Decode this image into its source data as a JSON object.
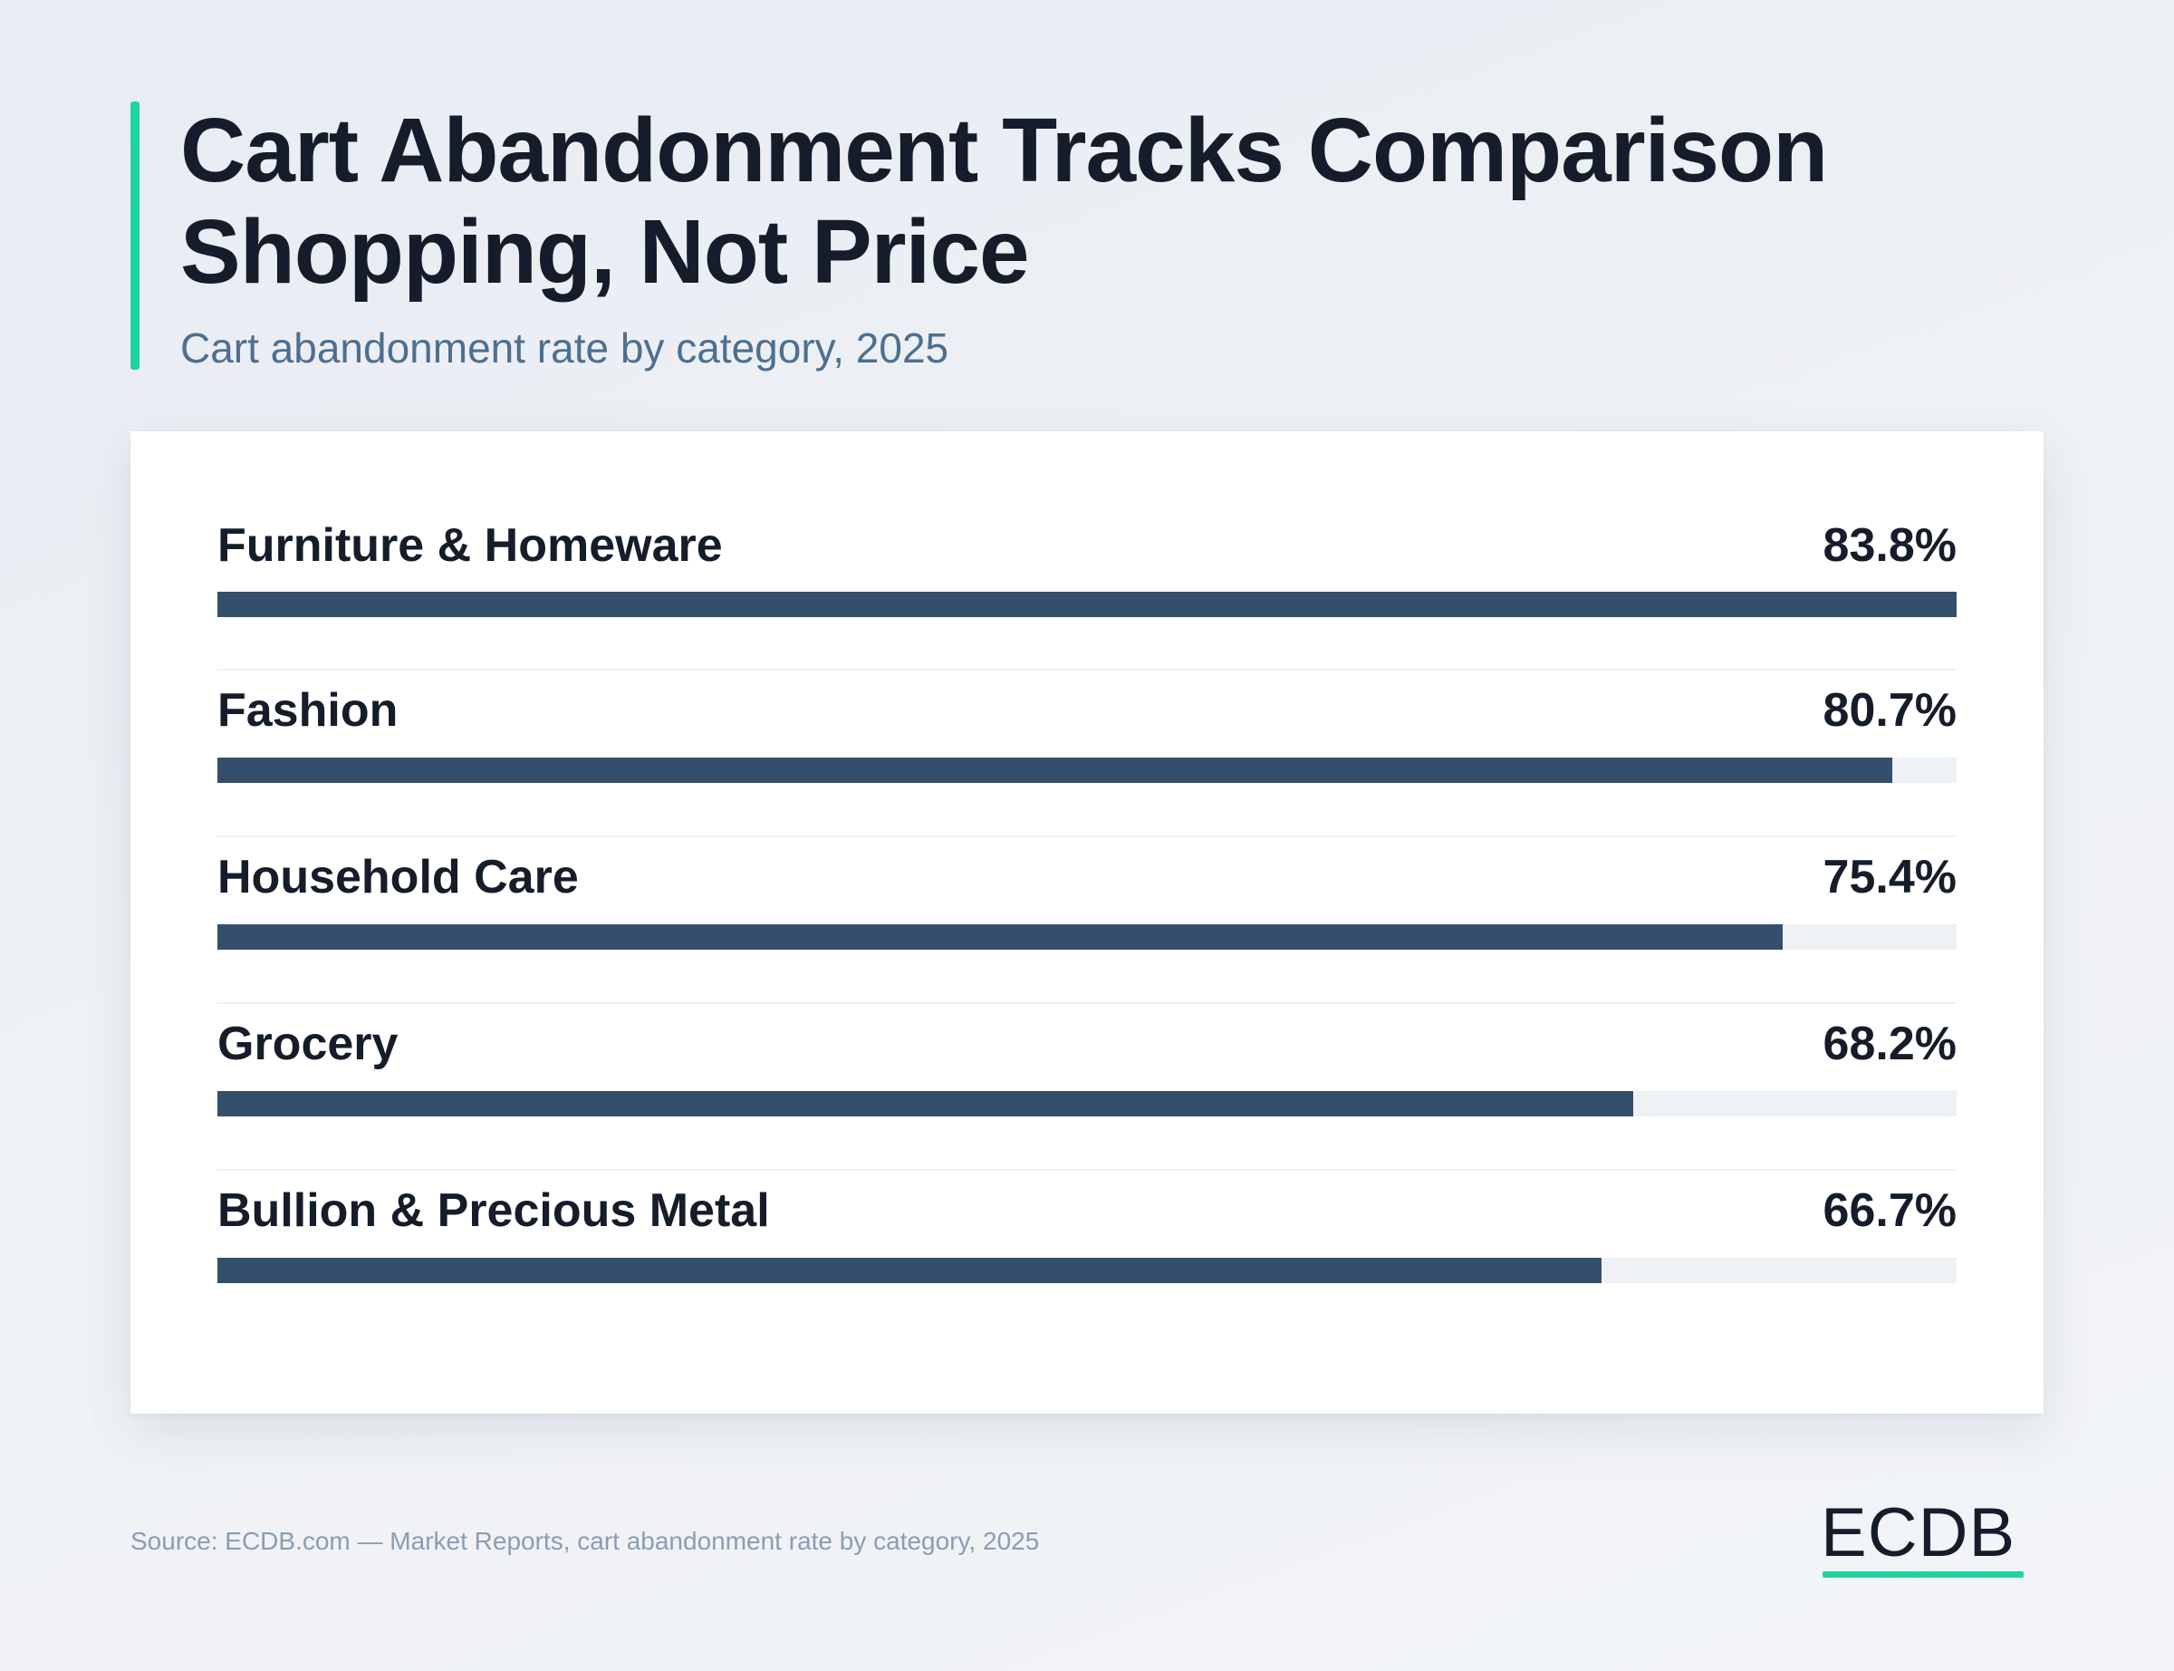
{
  "header": {
    "title_line1": "Cart Abandonment Tracks Comparison",
    "title_line2": "Shopping, Not Price",
    "subtitle": "Cart abandonment rate by category, 2025"
  },
  "chart_data": {
    "type": "bar",
    "orientation": "horizontal",
    "title": "Cart Abandonment Tracks Comparison Shopping, Not Price",
    "subtitle": "Cart abandonment rate by category, 2025",
    "categories": [
      "Furniture & Homeware",
      "Fashion",
      "Household Care",
      "Grocery",
      "Bullion & Precious Metal"
    ],
    "values": [
      83.8,
      80.7,
      75.4,
      68.2,
      66.7
    ],
    "value_labels": [
      "83.8%",
      "80.7%",
      "75.4%",
      "68.2%",
      "66.7%"
    ],
    "unit": "%",
    "xlim": [
      0,
      83.8
    ],
    "grid": false,
    "legend": "none",
    "colors": {
      "bar": "#344f6b",
      "track": "#eef1f5",
      "accent": "#1fd2a2"
    }
  },
  "footer": {
    "source": "Source: ECDB.com — Market Reports, cart abandonment rate by category, 2025",
    "logo_text": "ECDB"
  }
}
